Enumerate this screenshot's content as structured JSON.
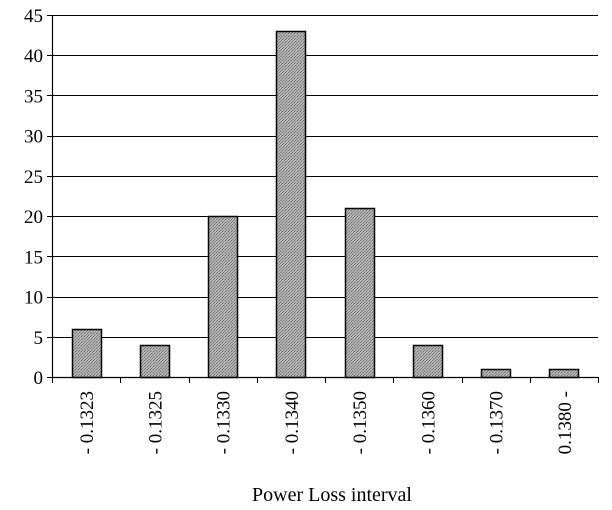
{
  "chart_data": {
    "type": "bar",
    "title": "",
    "xlabel": "Power Loss interval",
    "ylabel": "",
    "categories": [
      "- 0.1323",
      "- 0.1325",
      "- 0.1330",
      "- 0.1340",
      "- 0.1350",
      "- 0.1360",
      "- 0.1370",
      "0.1380 -"
    ],
    "values": [
      6,
      4,
      20,
      43,
      21,
      4,
      1,
      1
    ],
    "ylim": [
      0,
      45
    ],
    "yticks": [
      0,
      5,
      10,
      15,
      20,
      25,
      30,
      35,
      40,
      45
    ],
    "grid": true,
    "legend": "none",
    "bar_color": "#a0a0a0",
    "bar_edge_color": "#000000",
    "grid_color": "#000000"
  }
}
